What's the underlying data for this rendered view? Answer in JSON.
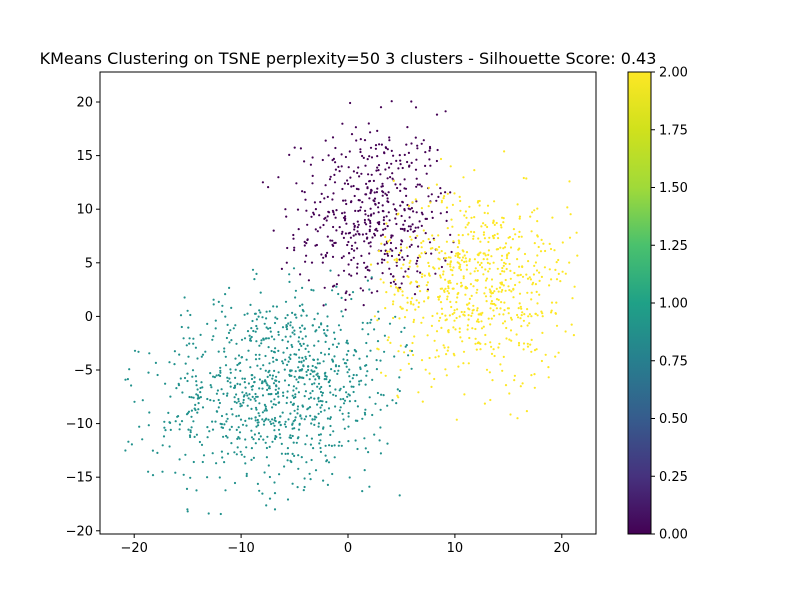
{
  "chart_data": {
    "type": "scatter",
    "title": "KMeans Clustering on TSNE perplexity=50 3 clusters - Silhouette Score: 0.43",
    "xlabel": "",
    "ylabel": "",
    "xlim": [
      -23.2,
      23.2
    ],
    "ylim": [
      -20.3,
      22.8
    ],
    "x_ticks": [
      -20,
      -10,
      0,
      10,
      20
    ],
    "x_tick_labels": [
      "−20",
      "−10",
      "0",
      "10",
      "20"
    ],
    "y_ticks": [
      -20,
      -15,
      -10,
      -5,
      0,
      5,
      10,
      15,
      20
    ],
    "y_tick_labels": [
      "−20",
      "−15",
      "−10",
      "−5",
      "0",
      "5",
      "10",
      "15",
      "20"
    ],
    "grid": false,
    "colormap": "viridis",
    "colorbar": {
      "range": [
        0,
        2
      ],
      "ticks": [
        0,
        0.25,
        0.5,
        0.75,
        1.0,
        1.25,
        1.5,
        1.75,
        2.0
      ],
      "tick_labels": [
        "0.00",
        "0.25",
        "0.50",
        "0.75",
        "1.00",
        "1.25",
        "1.50",
        "1.75",
        "2.00"
      ]
    },
    "clusters": [
      {
        "label": 0,
        "color": "#440154",
        "count": 520,
        "center": [
          2.5,
          9.5
        ],
        "spread": [
          3.8,
          4.2
        ],
        "angle_deg": 10,
        "x_range": [
          -11,
          10
        ],
        "y_range": [
          0,
          21
        ]
      },
      {
        "label": 1,
        "color": "#21918c",
        "count": 980,
        "center": [
          -6.5,
          -6.5
        ],
        "spread": [
          5.6,
          4.4
        ],
        "angle_deg": 18,
        "x_range": [
          -21,
          6
        ],
        "y_range": [
          -18.5,
          5
        ]
      },
      {
        "label": 2,
        "color": "#fde725",
        "count": 700,
        "center": [
          12,
          3.0
        ],
        "spread": [
          4.6,
          4.4
        ],
        "angle_deg": -10,
        "x_range": [
          2,
          21.5
        ],
        "y_range": [
          -11.5,
          15.5
        ]
      }
    ]
  }
}
